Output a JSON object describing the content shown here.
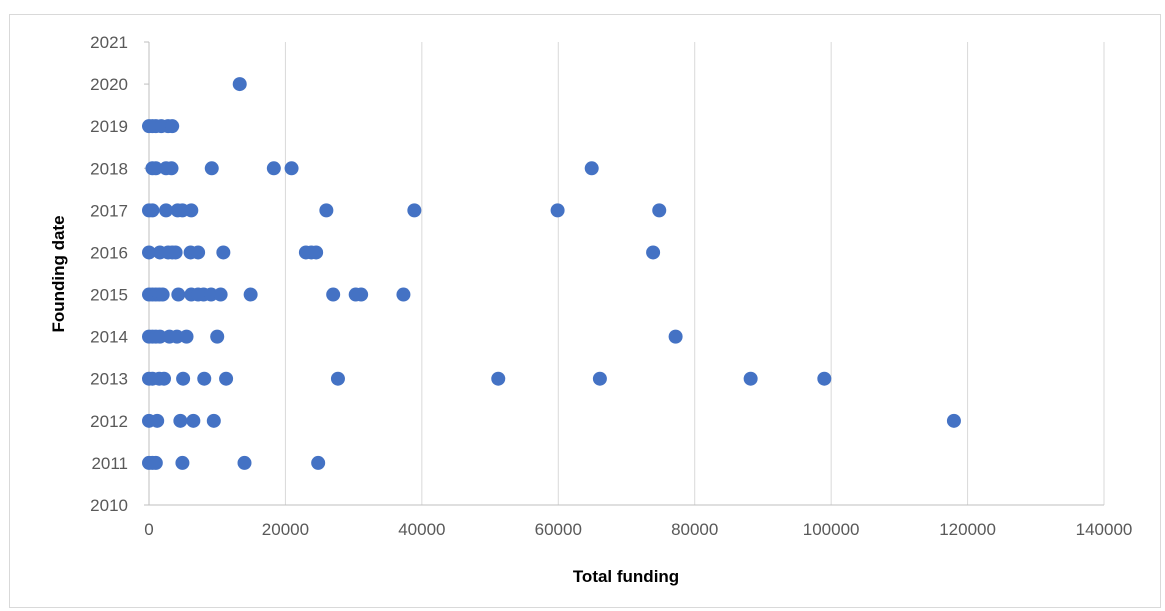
{
  "chart_data": {
    "type": "scatter",
    "xlabel": "Total funding",
    "ylabel": "Founding date",
    "xlim": [
      0,
      140000
    ],
    "ylim": [
      2010,
      2021
    ],
    "xticks": [
      0,
      20000,
      40000,
      60000,
      80000,
      100000,
      120000,
      140000
    ],
    "yticks": [
      2010,
      2011,
      2012,
      2013,
      2014,
      2015,
      2016,
      2017,
      2018,
      2019,
      2020,
      2021
    ],
    "grid": "vertical",
    "marker_color": "#4472C4",
    "points": [
      {
        "x": 13300,
        "y": 2020
      },
      {
        "x": 0,
        "y": 2019
      },
      {
        "x": 500,
        "y": 2019
      },
      {
        "x": 1000,
        "y": 2019
      },
      {
        "x": 1800,
        "y": 2019
      },
      {
        "x": 2800,
        "y": 2019
      },
      {
        "x": 3400,
        "y": 2019
      },
      {
        "x": 500,
        "y": 2018
      },
      {
        "x": 1000,
        "y": 2018
      },
      {
        "x": 2500,
        "y": 2018
      },
      {
        "x": 3300,
        "y": 2018
      },
      {
        "x": 9200,
        "y": 2018
      },
      {
        "x": 18300,
        "y": 2018
      },
      {
        "x": 20900,
        "y": 2018
      },
      {
        "x": 64900,
        "y": 2018
      },
      {
        "x": 0,
        "y": 2017
      },
      {
        "x": 500,
        "y": 2017
      },
      {
        "x": 2500,
        "y": 2017
      },
      {
        "x": 4200,
        "y": 2017
      },
      {
        "x": 4900,
        "y": 2017
      },
      {
        "x": 6200,
        "y": 2017
      },
      {
        "x": 26000,
        "y": 2017
      },
      {
        "x": 38900,
        "y": 2017
      },
      {
        "x": 59900,
        "y": 2017
      },
      {
        "x": 74800,
        "y": 2017
      },
      {
        "x": 0,
        "y": 2016
      },
      {
        "x": 1600,
        "y": 2016
      },
      {
        "x": 2800,
        "y": 2016
      },
      {
        "x": 3400,
        "y": 2016
      },
      {
        "x": 3900,
        "y": 2016
      },
      {
        "x": 6100,
        "y": 2016
      },
      {
        "x": 7200,
        "y": 2016
      },
      {
        "x": 10900,
        "y": 2016
      },
      {
        "x": 23000,
        "y": 2016
      },
      {
        "x": 23800,
        "y": 2016
      },
      {
        "x": 24500,
        "y": 2016
      },
      {
        "x": 73900,
        "y": 2016
      },
      {
        "x": 0,
        "y": 2015
      },
      {
        "x": 500,
        "y": 2015
      },
      {
        "x": 1000,
        "y": 2015
      },
      {
        "x": 1500,
        "y": 2015
      },
      {
        "x": 2000,
        "y": 2015
      },
      {
        "x": 4300,
        "y": 2015
      },
      {
        "x": 6200,
        "y": 2015
      },
      {
        "x": 7200,
        "y": 2015
      },
      {
        "x": 8000,
        "y": 2015
      },
      {
        "x": 9100,
        "y": 2015
      },
      {
        "x": 10500,
        "y": 2015
      },
      {
        "x": 14900,
        "y": 2015
      },
      {
        "x": 27000,
        "y": 2015
      },
      {
        "x": 30300,
        "y": 2015
      },
      {
        "x": 31100,
        "y": 2015
      },
      {
        "x": 37300,
        "y": 2015
      },
      {
        "x": 0,
        "y": 2014
      },
      {
        "x": 500,
        "y": 2014
      },
      {
        "x": 1000,
        "y": 2014
      },
      {
        "x": 1600,
        "y": 2014
      },
      {
        "x": 3000,
        "y": 2014
      },
      {
        "x": 4100,
        "y": 2014
      },
      {
        "x": 5500,
        "y": 2014
      },
      {
        "x": 10000,
        "y": 2014
      },
      {
        "x": 77200,
        "y": 2014
      },
      {
        "x": 0,
        "y": 2013
      },
      {
        "x": 500,
        "y": 2013
      },
      {
        "x": 1500,
        "y": 2013
      },
      {
        "x": 2200,
        "y": 2013
      },
      {
        "x": 5000,
        "y": 2013
      },
      {
        "x": 8100,
        "y": 2013
      },
      {
        "x": 11300,
        "y": 2013
      },
      {
        "x": 27700,
        "y": 2013
      },
      {
        "x": 51200,
        "y": 2013
      },
      {
        "x": 66100,
        "y": 2013
      },
      {
        "x": 88200,
        "y": 2013
      },
      {
        "x": 99000,
        "y": 2013
      },
      {
        "x": 0,
        "y": 2012
      },
      {
        "x": 1200,
        "y": 2012
      },
      {
        "x": 4600,
        "y": 2012
      },
      {
        "x": 6500,
        "y": 2012
      },
      {
        "x": 9500,
        "y": 2012
      },
      {
        "x": 118000,
        "y": 2012
      },
      {
        "x": 0,
        "y": 2011
      },
      {
        "x": 500,
        "y": 2011
      },
      {
        "x": 1000,
        "y": 2011
      },
      {
        "x": 4900,
        "y": 2011
      },
      {
        "x": 14000,
        "y": 2011
      },
      {
        "x": 24800,
        "y": 2011
      }
    ]
  }
}
